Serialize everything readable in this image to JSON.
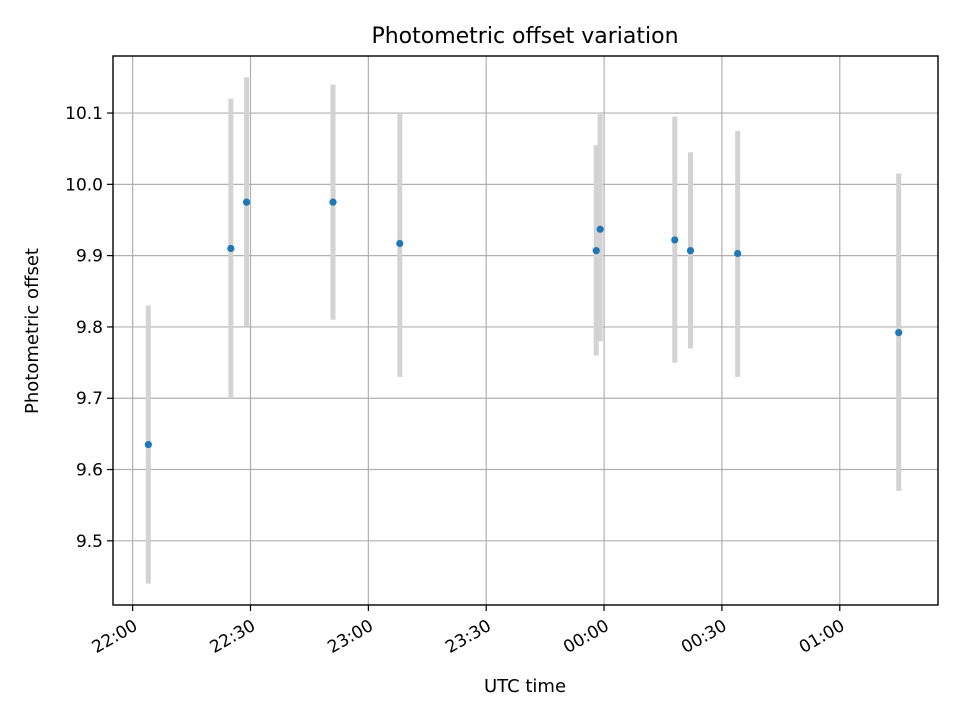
{
  "chart_data": {
    "type": "scatter",
    "title": "Photometric offset variation",
    "xlabel": "UTC time",
    "ylabel": "Photometric offset",
    "x_axis_kind": "time",
    "xlim": [
      "21:55",
      "01:25"
    ],
    "ylim": [
      9.41,
      10.18
    ],
    "x_ticks": [
      "22:00",
      "22:30",
      "23:00",
      "23:30",
      "00:00",
      "00:30",
      "01:00"
    ],
    "y_ticks": [
      "9.5",
      "9.6",
      "9.7",
      "9.8",
      "9.9",
      "10.0",
      "10.1"
    ],
    "grid": true,
    "colors": {
      "point": "#1f77b4",
      "errorbar": "#d3d3d3"
    },
    "points": [
      {
        "x": "22:04",
        "y": 9.635,
        "yerr_low": 9.44,
        "yerr_high": 9.83
      },
      {
        "x": "22:25",
        "y": 9.91,
        "yerr_low": 9.7,
        "yerr_high": 10.12
      },
      {
        "x": "22:29",
        "y": 9.975,
        "yerr_low": 9.8,
        "yerr_high": 10.15
      },
      {
        "x": "22:51",
        "y": 9.975,
        "yerr_low": 9.81,
        "yerr_high": 10.14
      },
      {
        "x": "23:08",
        "y": 9.917,
        "yerr_low": 9.73,
        "yerr_high": 10.1
      },
      {
        "x": "23:58",
        "y": 9.907,
        "yerr_low": 9.76,
        "yerr_high": 10.055
      },
      {
        "x": "23:59",
        "y": 9.937,
        "yerr_low": 9.78,
        "yerr_high": 10.1
      },
      {
        "x": "00:18",
        "y": 9.922,
        "yerr_low": 9.75,
        "yerr_high": 10.095
      },
      {
        "x": "00:22",
        "y": 9.907,
        "yerr_low": 9.77,
        "yerr_high": 10.045
      },
      {
        "x": "00:34",
        "y": 9.903,
        "yerr_low": 9.73,
        "yerr_high": 10.075
      },
      {
        "x": "01:15",
        "y": 9.792,
        "yerr_low": 9.57,
        "yerr_high": 10.015
      }
    ]
  }
}
